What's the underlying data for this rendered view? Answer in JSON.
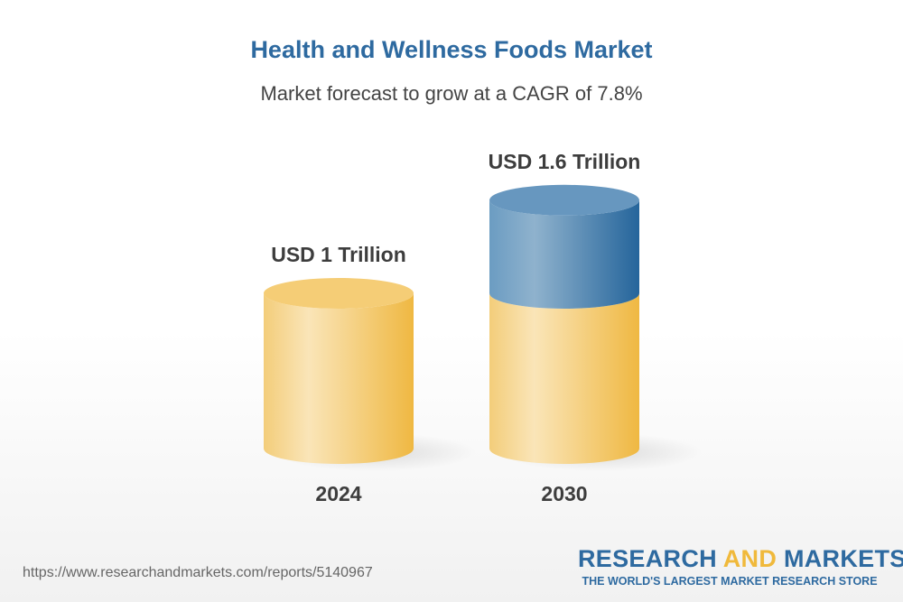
{
  "chart_data": {
    "type": "bar",
    "title": "Health and Wellness Foods Market",
    "subtitle": "Market forecast to grow at a CAGR of 7.8%",
    "categories": [
      "2024",
      "2030"
    ],
    "values": [
      1.0,
      1.6
    ],
    "unit": "USD Trillion",
    "data_labels": [
      "USD 1 Trillion",
      "USD 1.6 Trillion"
    ],
    "style": "3d-cylinder",
    "colors": {
      "base": "#f0b94a",
      "growth": "#2e6aa0"
    }
  },
  "footer": {
    "url": "https://www.researchandmarkets.com/reports/5140967",
    "logo_word1": "RESEARCH",
    "logo_word2": "AND",
    "logo_word3": "MARKETS",
    "logo_tagline": "THE WORLD'S LARGEST MARKET RESEARCH STORE"
  }
}
